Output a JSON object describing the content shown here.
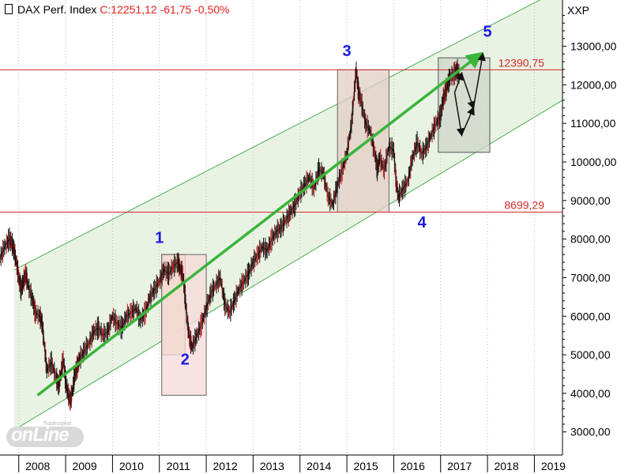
{
  "header": {
    "instrument": "DAX Perf. Index",
    "quote": "C:12251,12 -61,75 -0,50%"
  },
  "y_unit": "XXP",
  "logo": {
    "main": "onLine",
    "sub": "Tradesignal"
  },
  "chart_data": {
    "type": "line",
    "title": "DAX Perf. Index",
    "xlabel": "",
    "ylabel": "",
    "xlim": [
      2007.6,
      2019.6
    ],
    "ylim": [
      2400,
      14200
    ],
    "x_ticks": [
      "2008",
      "2009",
      "2010",
      "2011",
      "2012",
      "2013",
      "2014",
      "2015",
      "2016",
      "2017",
      "2018",
      "2019"
    ],
    "y_ticks": [
      "3000,00",
      "4000,00",
      "5000,00",
      "6000,00",
      "7000,00",
      "8000,00",
      "9000,00",
      "10000,00",
      "11000,00",
      "12000,00",
      "13000,00"
    ],
    "y_tick_values": [
      3000,
      4000,
      5000,
      6000,
      7000,
      8000,
      9000,
      10000,
      11000,
      12000,
      13000
    ],
    "horizontal_levels": [
      {
        "label": "12390,75",
        "value": 12390.75
      },
      {
        "label": "8699,29",
        "value": 8699.29
      }
    ],
    "channel": {
      "upper": [
        [
          2007.9,
          7200
        ],
        [
          2019.6,
          14500
        ]
      ],
      "lower": [
        [
          2007.9,
          3050
        ],
        [
          2019.6,
          11600
        ]
      ]
    },
    "trend_arrow": [
      [
        2008.4,
        3950
      ],
      [
        2017.85,
        12800
      ]
    ],
    "wave_labels": [
      {
        "label": "1",
        "x": 2011.0,
        "y": 7900
      },
      {
        "label": "2",
        "x": 2011.55,
        "y": 4750
      },
      {
        "label": "3",
        "x": 2015.0,
        "y": 12750
      },
      {
        "label": "4",
        "x": 2016.6,
        "y": 8300
      },
      {
        "label": "5",
        "x": 2018.0,
        "y": 13250
      }
    ],
    "boxes": [
      {
        "x0": 2011.05,
        "x1": 2011.55,
        "y0": 5000,
        "y1": 7600,
        "fill": "#ead9a8",
        "stroke": "#666666"
      },
      {
        "x0": 2011.05,
        "x1": 2012.0,
        "y0": 3950,
        "y1": 7600,
        "fill": "#f6d9d9",
        "stroke": "#666666"
      },
      {
        "x0": 2014.8,
        "x1": 2015.9,
        "y0": 8700,
        "y1": 12390,
        "fill": "#e2cdc4",
        "stroke": "#666666"
      },
      {
        "x0": 2016.95,
        "x1": 2018.05,
        "y0": 10250,
        "y1": 12700,
        "fill": "#cdd5cb",
        "stroke": "#555555"
      }
    ],
    "forecast_arrows": [
      [
        [
          2017.3,
          11800
        ],
        [
          2017.45,
          12300
        ],
        [
          2017.7,
          11400
        ]
      ],
      [
        [
          2017.3,
          11800
        ],
        [
          2017.45,
          10700
        ],
        [
          2017.7,
          11400
        ],
        [
          2017.9,
          12800
        ]
      ]
    ],
    "series": [
      {
        "type": "price",
        "x": [
          2007.6,
          2007.7,
          2007.8,
          2007.85,
          2007.9,
          2007.95,
          2008.0,
          2008.05,
          2008.1,
          2008.15,
          2008.2,
          2008.3,
          2008.35,
          2008.45,
          2008.5,
          2008.55,
          2008.6,
          2008.7,
          2008.8,
          2008.85,
          2008.9,
          2008.95,
          2009.0,
          2009.05,
          2009.1,
          2009.15,
          2009.2,
          2009.25,
          2009.3,
          2009.4,
          2009.5,
          2009.6,
          2009.7,
          2009.8,
          2009.9,
          2010.0,
          2010.1,
          2010.2,
          2010.3,
          2010.4,
          2010.5,
          2010.6,
          2010.7,
          2010.8,
          2010.9,
          2011.0,
          2011.1,
          2011.2,
          2011.3,
          2011.4,
          2011.45,
          2011.5,
          2011.55,
          2011.6,
          2011.65,
          2011.7,
          2011.8,
          2011.9,
          2012.0,
          2012.1,
          2012.2,
          2012.3,
          2012.4,
          2012.5,
          2012.6,
          2012.7,
          2012.8,
          2012.9,
          2013.0,
          2013.1,
          2013.2,
          2013.3,
          2013.4,
          2013.5,
          2013.6,
          2013.7,
          2013.8,
          2013.9,
          2014.0,
          2014.1,
          2014.2,
          2014.3,
          2014.4,
          2014.5,
          2014.6,
          2014.7,
          2014.8,
          2014.9,
          2015.0,
          2015.1,
          2015.15,
          2015.2,
          2015.25,
          2015.3,
          2015.4,
          2015.5,
          2015.6,
          2015.65,
          2015.7,
          2015.8,
          2015.9,
          2016.0,
          2016.05,
          2016.1,
          2016.2,
          2016.3,
          2016.4,
          2016.5,
          2016.6,
          2016.7,
          2016.8,
          2016.9,
          2017.0,
          2017.05,
          2017.1,
          2017.15,
          2017.2,
          2017.3,
          2017.35,
          2017.4
        ],
        "y": [
          7500,
          7800,
          8000,
          7900,
          7700,
          7400,
          7000,
          6700,
          6900,
          7100,
          6800,
          6400,
          6100,
          6000,
          5800,
          5200,
          4600,
          4800,
          4400,
          4200,
          4500,
          4900,
          4300,
          4000,
          3800,
          4100,
          4500,
          4700,
          4900,
          5100,
          5300,
          5600,
          5700,
          5500,
          5600,
          6000,
          5800,
          5700,
          6000,
          6100,
          6200,
          5900,
          6100,
          6500,
          6700,
          6900,
          7200,
          7100,
          7300,
          7400,
          7200,
          7100,
          6500,
          5800,
          5400,
          5200,
          5500,
          5800,
          6200,
          6600,
          6800,
          7000,
          6300,
          6100,
          6400,
          6700,
          6900,
          7100,
          7400,
          7600,
          7800,
          7700,
          8000,
          8200,
          8300,
          8500,
          8700,
          8900,
          9200,
          9400,
          9600,
          9300,
          9800,
          9700,
          9100,
          8900,
          9400,
          9800,
          10200,
          11000,
          11700,
          12390,
          11800,
          11600,
          11000,
          10800,
          10200,
          9800,
          10100,
          9800,
          10400,
          10300,
          9500,
          9100,
          9300,
          9500,
          10100,
          10500,
          10200,
          10400,
          10700,
          11000,
          11200,
          11600,
          11800,
          12000,
          12200,
          12300,
          12400,
          12250
        ]
      }
    ]
  }
}
